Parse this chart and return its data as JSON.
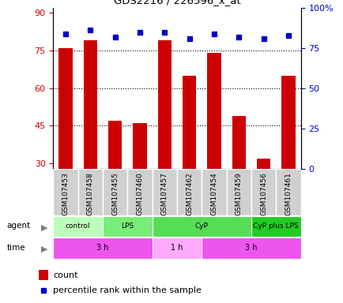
{
  "title": "GDS2216 / 226596_x_at",
  "samples": [
    "GSM107453",
    "GSM107458",
    "GSM107455",
    "GSM107460",
    "GSM107457",
    "GSM107462",
    "GSM107454",
    "GSM107459",
    "GSM107456",
    "GSM107461"
  ],
  "counts": [
    76,
    79,
    47,
    46,
    79,
    65,
    74,
    49,
    32,
    65
  ],
  "percentiles": [
    84,
    86,
    82,
    85,
    85,
    81,
    84,
    82,
    81,
    83
  ],
  "ylim_left": [
    28,
    92
  ],
  "ylim_right": [
    0,
    100
  ],
  "yticks_left": [
    30,
    45,
    60,
    75,
    90
  ],
  "yticks_right": [
    0,
    25,
    50,
    75,
    100
  ],
  "bar_color": "#cc0000",
  "dot_color": "#0000cc",
  "agent_groups": [
    {
      "label": "control",
      "start": 0,
      "end": 2,
      "color": "#bbffbb"
    },
    {
      "label": "LPS",
      "start": 2,
      "end": 4,
      "color": "#77ee77"
    },
    {
      "label": "CyP",
      "start": 4,
      "end": 8,
      "color": "#55dd55"
    },
    {
      "label": "CyP plus LPS",
      "start": 8,
      "end": 10,
      "color": "#22cc22"
    }
  ],
  "time_groups": [
    {
      "label": "3 h",
      "start": 0,
      "end": 4,
      "color": "#ee55ee"
    },
    {
      "label": "1 h",
      "start": 4,
      "end": 6,
      "color": "#ffaaff"
    },
    {
      "label": "3 h",
      "start": 6,
      "end": 10,
      "color": "#ee55ee"
    }
  ],
  "background_color": "#ffffff",
  "tick_color_left": "#cc0000",
  "tick_color_right": "#0000cc",
  "sample_box_color": "#d0d0d0",
  "grid_lines": [
    45,
    60,
    75
  ]
}
